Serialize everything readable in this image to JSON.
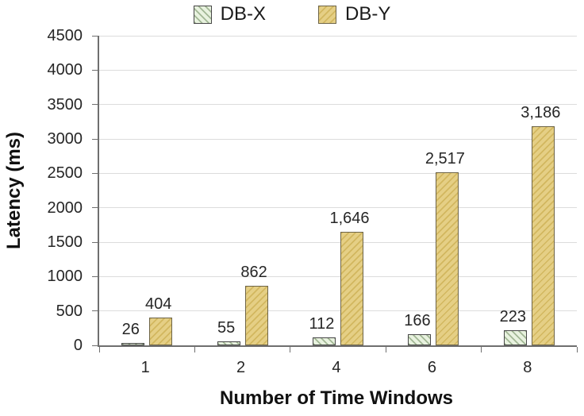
{
  "chart_data": {
    "type": "bar",
    "title": "",
    "categories": [
      "1",
      "2",
      "4",
      "6",
      "8"
    ],
    "series": [
      {
        "name": "DB-X",
        "values": [
          26,
          55,
          112,
          166,
          223
        ],
        "labels": [
          "26",
          "55",
          "112",
          "166",
          "223"
        ],
        "fill": "#e8f2df",
        "hatch": "#a2b795",
        "border": "#474747",
        "hatch_angle_deg": 45
      },
      {
        "name": "DB-Y",
        "values": [
          404,
          862,
          1646,
          2517,
          3186
        ],
        "labels": [
          "404",
          "862",
          "1,646",
          "2,517",
          "3,186"
        ],
        "fill": "#e5cf85",
        "hatch": "#d2b75f",
        "border": "#6e6548",
        "hatch_angle_deg": 135
      }
    ],
    "xlabel": "Number of Time Windows",
    "ylabel": "Latency (ms)",
    "ylim": [
      0,
      4500
    ],
    "ytick_step": 500,
    "yticks": [
      "0",
      "500",
      "1000",
      "1500",
      "2000",
      "2500",
      "3000",
      "3500",
      "4000",
      "4500"
    ],
    "legend_position": "top-center",
    "grid": true,
    "gridline_color": "#dcdcdc",
    "axis_color": "#6f6f6f",
    "text_color": "#262626"
  }
}
